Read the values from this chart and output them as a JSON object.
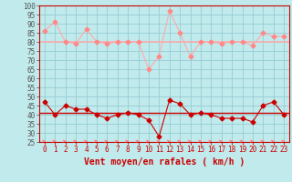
{
  "xlabel": "Vent moyen/en rafales ( km/h )",
  "background_color": "#c0eaec",
  "grid_color": "#96cdd4",
  "x": [
    0,
    1,
    2,
    3,
    4,
    5,
    6,
    7,
    8,
    9,
    10,
    11,
    12,
    13,
    14,
    15,
    16,
    17,
    18,
    19,
    20,
    21,
    22,
    23
  ],
  "rafales_line": [
    86,
    91,
    80,
    79,
    87,
    80,
    79,
    80,
    80,
    80,
    65,
    72,
    97,
    85,
    72,
    80,
    80,
    79,
    80,
    80,
    78,
    85,
    83,
    83
  ],
  "moyen_line": [
    47,
    40,
    45,
    43,
    43,
    40,
    38,
    40,
    41,
    40,
    37,
    28,
    48,
    46,
    40,
    41,
    40,
    38,
    38,
    38,
    36,
    45,
    47,
    40
  ],
  "flat_high": 80,
  "flat_low": 41,
  "ylim": [
    25,
    100
  ],
  "xlim": [
    -0.5,
    23.5
  ],
  "light_pink": "#ffaaaa",
  "salmon": "#ff8888",
  "dark_red": "#cc0000",
  "arrow_color": "#ff7777",
  "xlabel_color": "#cc0000",
  "xlabel_fontsize": 7,
  "tick_fontsize": 5.5,
  "marker_size": 2.5,
  "linewidth": 0.8
}
